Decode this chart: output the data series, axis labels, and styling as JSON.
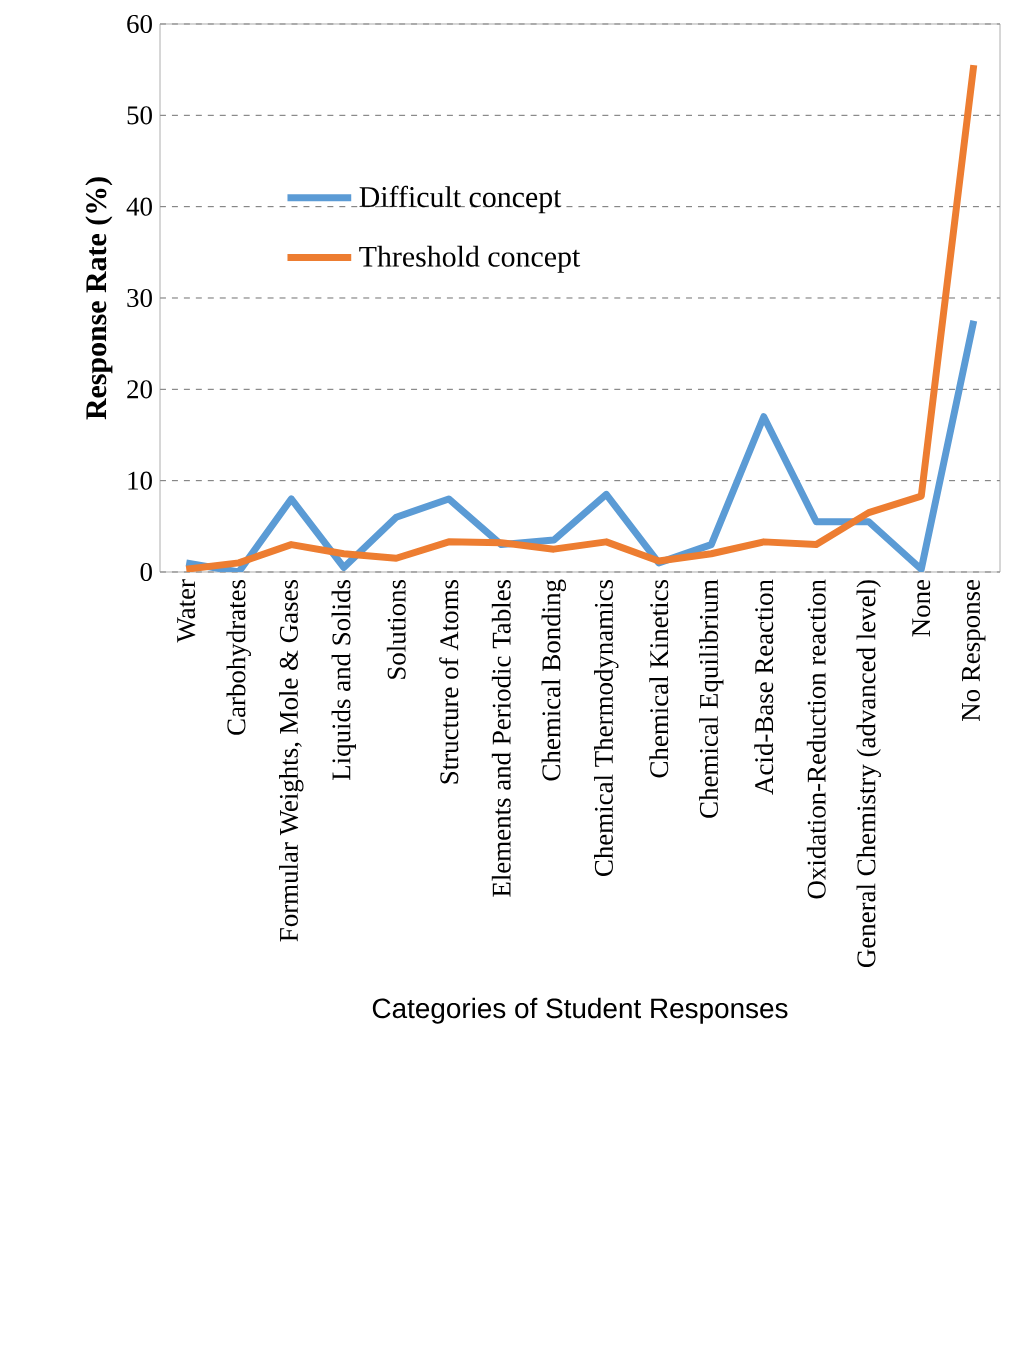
{
  "chart_data": {
    "type": "line",
    "xlabel": "Categories of Student Responses",
    "ylabel": "Response Rate (%)",
    "categories": [
      "Water",
      "Carbohydrates",
      "Formular Weights, Mole & Gases",
      "Liquids and Solids",
      "Solutions",
      "Structure of Atoms",
      "Elements and Periodic Tables",
      "Chemical Bonding",
      "Chemical Thermodynamics",
      "Chemical Kinetics",
      "Chemical Equilibrium",
      "Acid-Base Reaction",
      "Oxidation-Reduction reaction",
      "General Chemistry (advanced level)",
      "None",
      "No Response"
    ],
    "series": [
      {
        "name": "Difficult concept",
        "color": "#5b9bd5",
        "values": [
          1,
          0,
          8,
          0.5,
          6,
          8,
          3,
          3.5,
          8.5,
          1,
          3,
          17,
          5.5,
          5.5,
          0.3,
          27.5
        ]
      },
      {
        "name": "Threshold concept",
        "color": "#ed7d31",
        "values": [
          0.3,
          1,
          3,
          2,
          1.5,
          3.3,
          3.2,
          2.5,
          3.3,
          1.2,
          2,
          3.3,
          3,
          6.5,
          8.3,
          55.5
        ]
      }
    ],
    "ylim": [
      0,
      60
    ],
    "yticks": [
      0,
      10,
      20,
      30,
      40,
      50,
      60
    ],
    "grid": "y",
    "legend": "center",
    "marker": "none",
    "line_style": "solid"
  }
}
